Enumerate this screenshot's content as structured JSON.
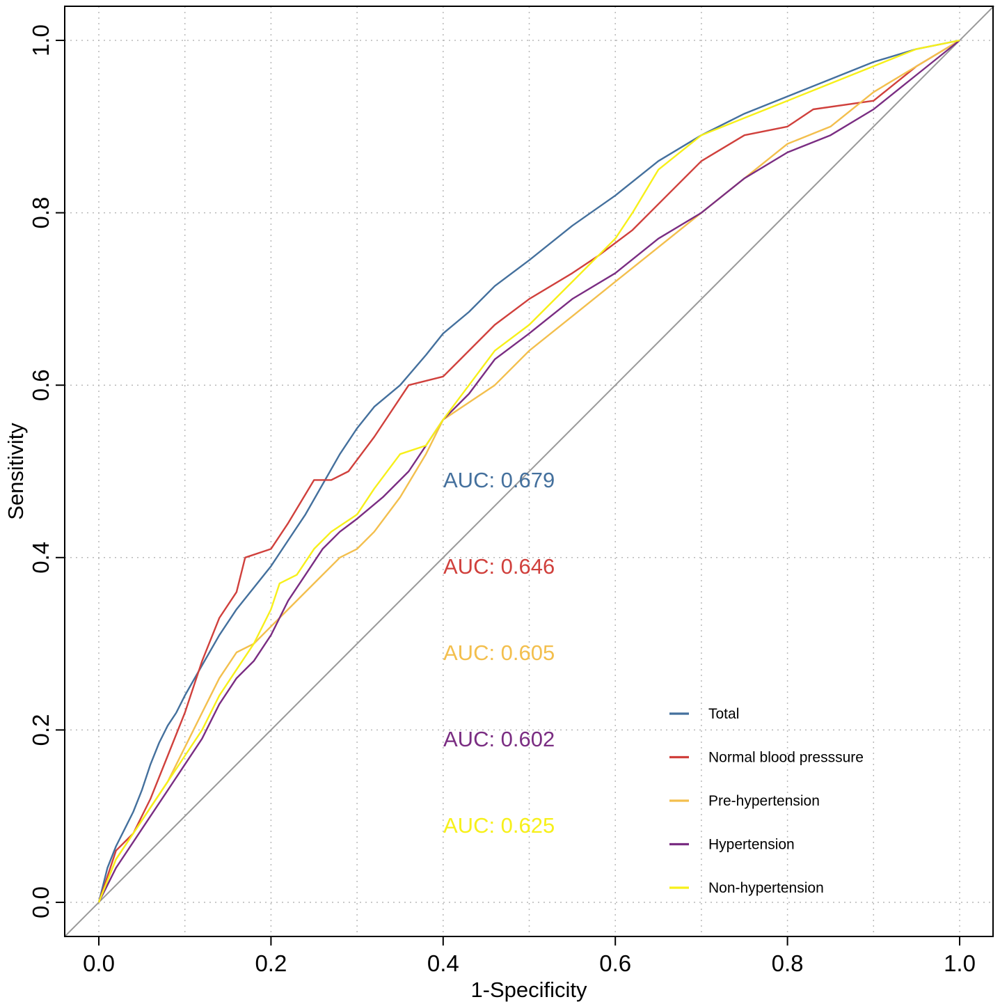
{
  "chart_data": {
    "type": "line",
    "title": "",
    "xlabel": "1-Specificity",
    "ylabel": "Sensitivity",
    "xlim": [
      -0.04,
      1.04
    ],
    "ylim": [
      -0.04,
      1.04
    ],
    "grid": true,
    "x_ticks": [
      "0.0",
      "0.2",
      "0.4",
      "0.6",
      "0.8",
      "1.0"
    ],
    "y_ticks": [
      "0.0",
      "0.2",
      "0.4",
      "0.6",
      "0.8",
      "1.0"
    ],
    "reference_line": {
      "x": [
        0,
        1
      ],
      "y": [
        0,
        1
      ],
      "color": "#999999"
    },
    "legend_position": "bottom-right",
    "series": [
      {
        "name": "Total",
        "color": "#44709d",
        "auc_label": "AUC: 0.679",
        "x": [
          0,
          0.01,
          0.02,
          0.03,
          0.04,
          0.05,
          0.06,
          0.07,
          0.08,
          0.09,
          0.1,
          0.12,
          0.14,
          0.16,
          0.18,
          0.2,
          0.22,
          0.24,
          0.26,
          0.28,
          0.3,
          0.32,
          0.35,
          0.38,
          0.4,
          0.43,
          0.46,
          0.5,
          0.55,
          0.6,
          0.65,
          0.7,
          0.75,
          0.8,
          0.85,
          0.9,
          0.95,
          1.0
        ],
        "y": [
          0,
          0.04,
          0.065,
          0.085,
          0.105,
          0.13,
          0.16,
          0.185,
          0.205,
          0.22,
          0.24,
          0.275,
          0.31,
          0.34,
          0.365,
          0.39,
          0.42,
          0.45,
          0.485,
          0.52,
          0.55,
          0.575,
          0.6,
          0.635,
          0.66,
          0.685,
          0.715,
          0.745,
          0.785,
          0.82,
          0.86,
          0.89,
          0.915,
          0.935,
          0.955,
          0.975,
          0.99,
          1.0
        ]
      },
      {
        "name": "Normal blood presssure",
        "color": "#d0403c",
        "auc_label": "AUC: 0.646",
        "x": [
          0,
          0.02,
          0.04,
          0.06,
          0.08,
          0.1,
          0.12,
          0.14,
          0.16,
          0.17,
          0.2,
          0.22,
          0.25,
          0.27,
          0.29,
          0.32,
          0.36,
          0.4,
          0.42,
          0.46,
          0.5,
          0.55,
          0.58,
          0.62,
          0.66,
          0.7,
          0.75,
          0.8,
          0.83,
          0.9,
          0.95,
          1.0
        ],
        "y": [
          0,
          0.06,
          0.08,
          0.12,
          0.17,
          0.22,
          0.28,
          0.33,
          0.36,
          0.4,
          0.41,
          0.44,
          0.49,
          0.49,
          0.5,
          0.54,
          0.6,
          0.61,
          0.63,
          0.67,
          0.7,
          0.73,
          0.75,
          0.78,
          0.82,
          0.86,
          0.89,
          0.9,
          0.92,
          0.93,
          0.97,
          1.0
        ]
      },
      {
        "name": "Pre-hypertension",
        "color": "#f3bf4d",
        "auc_label": "AUC: 0.605",
        "x": [
          0,
          0.02,
          0.04,
          0.06,
          0.08,
          0.1,
          0.12,
          0.14,
          0.16,
          0.18,
          0.2,
          0.22,
          0.25,
          0.28,
          0.3,
          0.32,
          0.35,
          0.38,
          0.4,
          0.43,
          0.46,
          0.5,
          0.55,
          0.6,
          0.65,
          0.7,
          0.75,
          0.8,
          0.85,
          0.9,
          0.95,
          1.0
        ],
        "y": [
          0,
          0.05,
          0.08,
          0.11,
          0.14,
          0.18,
          0.22,
          0.26,
          0.29,
          0.3,
          0.32,
          0.34,
          0.37,
          0.4,
          0.41,
          0.43,
          0.47,
          0.52,
          0.56,
          0.58,
          0.6,
          0.64,
          0.68,
          0.72,
          0.76,
          0.8,
          0.84,
          0.88,
          0.9,
          0.94,
          0.97,
          1.0
        ]
      },
      {
        "name": "Hypertension",
        "color": "#7a2d82",
        "auc_label": "AUC: 0.602",
        "x": [
          0,
          0.02,
          0.04,
          0.06,
          0.08,
          0.1,
          0.12,
          0.14,
          0.16,
          0.18,
          0.2,
          0.22,
          0.24,
          0.26,
          0.28,
          0.3,
          0.33,
          0.36,
          0.38,
          0.4,
          0.43,
          0.46,
          0.5,
          0.55,
          0.6,
          0.65,
          0.7,
          0.75,
          0.8,
          0.85,
          0.9,
          0.95,
          1.0
        ],
        "y": [
          0,
          0.04,
          0.07,
          0.1,
          0.13,
          0.16,
          0.19,
          0.23,
          0.26,
          0.28,
          0.31,
          0.35,
          0.38,
          0.41,
          0.43,
          0.445,
          0.47,
          0.5,
          0.53,
          0.56,
          0.59,
          0.63,
          0.66,
          0.7,
          0.73,
          0.77,
          0.8,
          0.84,
          0.87,
          0.89,
          0.92,
          0.96,
          1.0
        ]
      },
      {
        "name": "Non-hypertension",
        "color": "#f7f019",
        "auc_label": "AUC: 0.625",
        "x": [
          0,
          0.02,
          0.04,
          0.06,
          0.08,
          0.1,
          0.12,
          0.14,
          0.16,
          0.18,
          0.2,
          0.21,
          0.23,
          0.25,
          0.27,
          0.3,
          0.32,
          0.35,
          0.38,
          0.4,
          0.43,
          0.46,
          0.5,
          0.55,
          0.6,
          0.62,
          0.65,
          0.7,
          0.75,
          0.8,
          0.85,
          0.9,
          0.95,
          1.0
        ],
        "y": [
          0,
          0.05,
          0.08,
          0.11,
          0.14,
          0.17,
          0.2,
          0.24,
          0.27,
          0.3,
          0.34,
          0.37,
          0.38,
          0.41,
          0.43,
          0.45,
          0.48,
          0.52,
          0.53,
          0.56,
          0.6,
          0.64,
          0.67,
          0.72,
          0.77,
          0.8,
          0.85,
          0.89,
          0.91,
          0.93,
          0.95,
          0.97,
          0.99,
          1.0
        ]
      }
    ]
  }
}
